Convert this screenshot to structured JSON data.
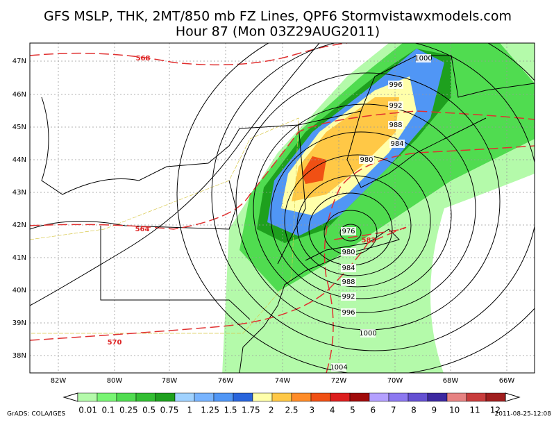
{
  "header": {
    "title_lines": [
      "GFS MSLP, THK, 2MT/850 mb FZ Lines, QPF6 Stormvistawxmodels.com",
      "Hour 87 (Mon 03Z29AUG2011)"
    ]
  },
  "map": {
    "lat_labels": [
      "47N",
      "46N",
      "45N",
      "44N",
      "43N",
      "42N",
      "41N",
      "40N",
      "39N",
      "38N"
    ],
    "lon_labels": [
      "82W",
      "80W",
      "78W",
      "76W",
      "74W",
      "72W",
      "70W",
      "68W",
      "66W"
    ],
    "isobar_labels": [
      "1000",
      "996",
      "992",
      "988",
      "984",
      "980",
      "976",
      "980",
      "984",
      "988",
      "992",
      "996",
      "1000",
      "1004"
    ],
    "thickness_labels": [
      "568",
      "564",
      "582",
      "570"
    ]
  },
  "legend": {
    "labels": [
      "0.01",
      "0.1",
      "0.25",
      "0.5",
      "0.75",
      "1",
      "1.25",
      "1.5",
      "1.75",
      "2",
      "2.5",
      "3",
      "4",
      "5",
      "6",
      "7",
      "8",
      "9",
      "10",
      "11",
      "12"
    ],
    "colors": [
      "#b4faaa",
      "#78f573",
      "#50dc50",
      "#32be32",
      "#1ea01e",
      "#a0d2ff",
      "#78b4ff",
      "#5096f5",
      "#2864dc",
      "#ffffaa",
      "#ffc846",
      "#ff8c28",
      "#f05014",
      "#dc1e1e",
      "#a00a0a",
      "#b4a0ff",
      "#8c78f0",
      "#6450d2",
      "#3c28a0",
      "#e68282",
      "#c83c3c",
      "#a01e1e"
    ]
  },
  "footer": {
    "left": "GrADS: COLA/IGES",
    "right": "2011-08-25-12:08"
  }
}
